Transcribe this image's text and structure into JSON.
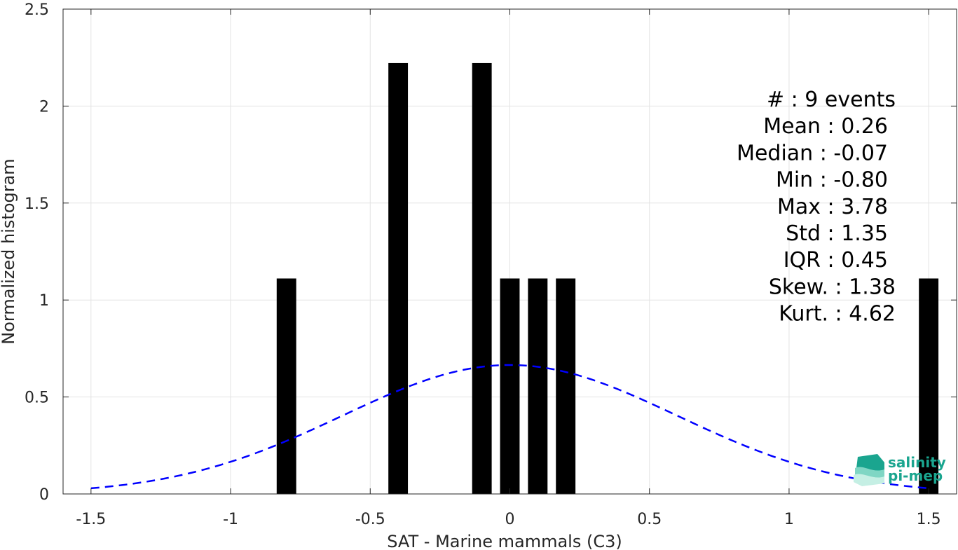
{
  "chart_data": {
    "type": "bar",
    "xlabel": "SAT - Marine mammals (C3)",
    "ylabel": "Normalized histogram",
    "xlim": [
      -1.6,
      1.6
    ],
    "ylim": [
      0,
      2.5
    ],
    "xticks": [
      -1.5,
      -1,
      -0.5,
      0,
      0.5,
      1,
      1.5
    ],
    "xtick_labels": [
      "-1.5",
      "-1",
      "-0.5",
      "0",
      "0.5",
      "1",
      "1.5"
    ],
    "yticks": [
      0,
      0.5,
      1,
      1.5,
      2,
      2.5
    ],
    "ytick_labels": [
      "0",
      "0.5",
      "1",
      "1.5",
      "2",
      "2.5"
    ],
    "grid": true,
    "bar_width": 0.07,
    "bars": [
      {
        "x": -0.8,
        "value": 1.111
      },
      {
        "x": -0.4,
        "value": 2.222
      },
      {
        "x": -0.1,
        "value": 2.222
      },
      {
        "x": 0.0,
        "value": 1.111
      },
      {
        "x": 0.1,
        "value": 1.111
      },
      {
        "x": 0.2,
        "value": 1.111
      },
      {
        "x": 1.5,
        "value": 1.111
      }
    ],
    "fit_curve": {
      "type": "normal",
      "mean": 0.0,
      "std": 0.6,
      "x_range": [
        -1.5,
        1.5
      ],
      "color": "#0000ff",
      "style": "dashed"
    },
    "bar_color": "#000000",
    "stats_lines": [
      "#  : 9 events",
      "Mean : 0.26",
      "Median : -0.07",
      "Min : -0.80",
      "Max : 3.78",
      "Std : 1.35",
      "IQR : 0.45",
      "Skew. : 1.38",
      "Kurt. : 4.62"
    ]
  },
  "logo": {
    "line1": "salinity",
    "line2": "pi-mep",
    "color": "#1aa58f"
  }
}
